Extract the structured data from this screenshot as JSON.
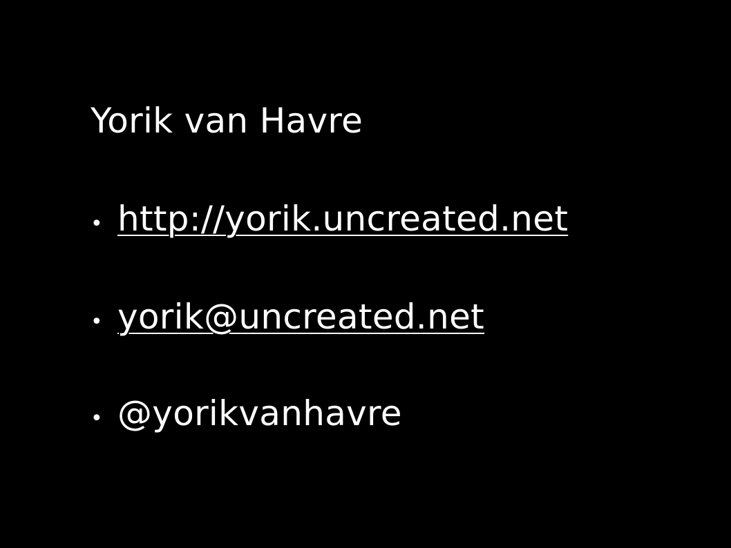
{
  "slide": {
    "title": "Yorik van Havre",
    "bullet_char": "•",
    "items": [
      {
        "text": "http://yorik.uncreated.net",
        "type": "link"
      },
      {
        "text": "yorik@uncreated.net",
        "type": "link"
      },
      {
        "text": "@yorikvanhavre",
        "type": "text"
      }
    ]
  },
  "colors": {
    "background": "#000000",
    "text": "#ffffff"
  }
}
